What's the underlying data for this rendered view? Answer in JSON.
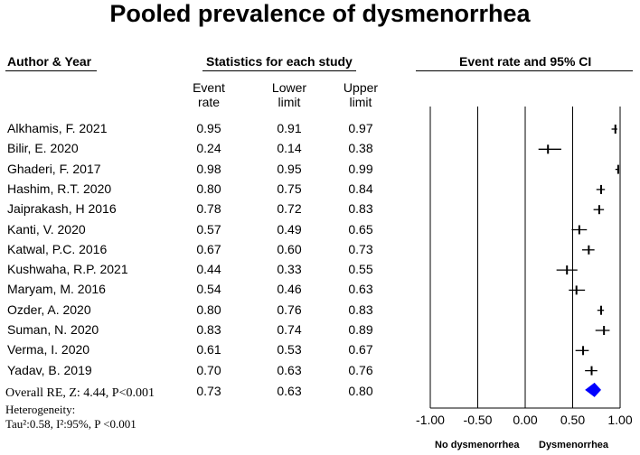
{
  "title": "Pooled prevalence of dysmenorrhea",
  "headers": {
    "author": "Author & Year",
    "statistics": "Statistics for each study",
    "plot": "Event rate and 95% CI"
  },
  "subheaders": {
    "event_line1": "Event",
    "event_line2": "rate",
    "lower_line1": "Lower",
    "lower_line2": "limit",
    "upper_line1": "Upper",
    "upper_line2": "limit"
  },
  "studies": [
    {
      "author": "Alkhamis, F. 2021",
      "rate": "0.95",
      "lower": "0.91",
      "upper": "0.97"
    },
    {
      "author": "Bilir, E. 2020",
      "rate": "0.24",
      "lower": "0.14",
      "upper": "0.38"
    },
    {
      "author": "Ghaderi, F. 2017",
      "rate": "0.98",
      "lower": "0.95",
      "upper": "0.99"
    },
    {
      "author": "Hashim, R.T. 2020",
      "rate": "0.80",
      "lower": "0.75",
      "upper": "0.84"
    },
    {
      "author": "Jaiprakash, H 2016",
      "rate": "0.78",
      "lower": "0.72",
      "upper": "0.83"
    },
    {
      "author": "Kanti, V. 2020",
      "rate": "0.57",
      "lower": "0.49",
      "upper": "0.65"
    },
    {
      "author": "Katwal, P.C. 2016",
      "rate": "0.67",
      "lower": "0.60",
      "upper": "0.73"
    },
    {
      "author": "Kushwaha, R.P. 2021",
      "rate": "0.44",
      "lower": "0.33",
      "upper": "0.55"
    },
    {
      "author": "Maryam, M. 2016",
      "rate": "0.54",
      "lower": "0.46",
      "upper": "0.63"
    },
    {
      "author": "Ozder, A. 2020",
      "rate": "0.80",
      "lower": "0.76",
      "upper": "0.83"
    },
    {
      "author": "Suman, N. 2020",
      "rate": "0.83",
      "lower": "0.74",
      "upper": "0.89"
    },
    {
      "author": "Verma, I. 2020",
      "rate": "0.61",
      "lower": "0.53",
      "upper": "0.67"
    },
    {
      "author": "Yadav, B. 2019",
      "rate": "0.70",
      "lower": "0.63",
      "upper": "0.76"
    }
  ],
  "overall": {
    "label": "Overall RE, Z: 4.44, P<0.001",
    "rate": "0.73",
    "lower": "0.63",
    "upper": "0.80",
    "heterogeneity_label": "Heterogeneity:",
    "heterogeneity_stats": "Tau²:0.58, I²:95%, P <0.001"
  },
  "footer": {
    "left": "No dysmenorrhea",
    "right": "Dysmenorrhea"
  },
  "colors": {
    "diamond": "#0000ff",
    "line": "#000000"
  },
  "chart_data": {
    "type": "forest",
    "title": "Pooled prevalence of dysmenorrhea",
    "xlabel": "Event rate and 95% CI",
    "xlim": [
      -1.0,
      1.0
    ],
    "ticks": [
      -1.0,
      -0.5,
      0.0,
      0.5,
      1.0
    ],
    "tick_labels": [
      "-1.00",
      "-0.50",
      "0.00",
      "0.50",
      "1.00"
    ],
    "points": [
      {
        "label": "Alkhamis, F. 2021",
        "value": 0.95,
        "lower": 0.91,
        "upper": 0.97
      },
      {
        "label": "Bilir, E. 2020",
        "value": 0.24,
        "lower": 0.14,
        "upper": 0.38
      },
      {
        "label": "Ghaderi, F. 2017",
        "value": 0.98,
        "lower": 0.95,
        "upper": 0.99
      },
      {
        "label": "Hashim, R.T. 2020",
        "value": 0.8,
        "lower": 0.75,
        "upper": 0.84
      },
      {
        "label": "Jaiprakash, H 2016",
        "value": 0.78,
        "lower": 0.72,
        "upper": 0.83
      },
      {
        "label": "Kanti, V. 2020",
        "value": 0.57,
        "lower": 0.49,
        "upper": 0.65
      },
      {
        "label": "Katwal, P.C. 2016",
        "value": 0.67,
        "lower": 0.6,
        "upper": 0.73
      },
      {
        "label": "Kushwaha, R.P. 2021",
        "value": 0.44,
        "lower": 0.33,
        "upper": 0.55
      },
      {
        "label": "Maryam, M. 2016",
        "value": 0.54,
        "lower": 0.46,
        "upper": 0.63
      },
      {
        "label": "Ozder, A. 2020",
        "value": 0.8,
        "lower": 0.76,
        "upper": 0.83
      },
      {
        "label": "Suman, N. 2020",
        "value": 0.83,
        "lower": 0.74,
        "upper": 0.89
      },
      {
        "label": "Verma, I. 2020",
        "value": 0.61,
        "lower": 0.53,
        "upper": 0.67
      },
      {
        "label": "Yadav, B. 2019",
        "value": 0.7,
        "lower": 0.63,
        "upper": 0.76
      }
    ],
    "pooled": {
      "label": "Overall RE",
      "value": 0.73,
      "lower": 0.63,
      "upper": 0.8
    }
  }
}
